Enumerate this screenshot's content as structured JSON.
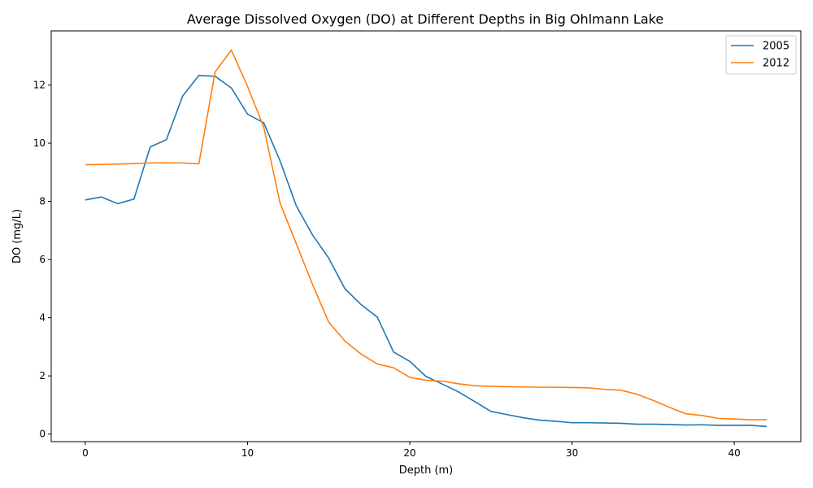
{
  "chart_data": {
    "type": "line",
    "title": "Average Dissolved Oxygen (DO) at Different Depths in Big Ohlmann Lake",
    "xlabel": "Depth (m)",
    "ylabel": "DO (mg/L)",
    "xlim": [
      -2.1,
      44.1
    ],
    "ylim": [
      -0.26,
      13.86
    ],
    "xticks": [
      0,
      10,
      20,
      30,
      40
    ],
    "yticks": [
      0,
      2,
      4,
      6,
      8,
      10,
      12
    ],
    "grid": false,
    "legend_position": "top-right",
    "x": [
      0,
      1,
      2,
      3,
      4,
      5,
      6,
      7,
      8,
      9,
      10,
      11,
      12,
      13,
      14,
      15,
      16,
      17,
      18,
      19,
      20,
      21,
      22,
      23,
      24,
      25,
      26,
      27,
      28,
      29,
      30,
      31,
      32,
      33,
      34,
      35,
      36,
      37,
      38,
      39,
      40,
      41,
      42
    ],
    "series": [
      {
        "name": "2005",
        "color": "#1f77b4",
        "values": [
          8.05,
          8.15,
          7.92,
          8.08,
          9.87,
          10.12,
          11.62,
          12.33,
          12.3,
          11.9,
          11.0,
          10.7,
          9.4,
          7.85,
          6.85,
          6.05,
          5.0,
          4.45,
          4.02,
          2.82,
          2.5,
          1.98,
          1.72,
          1.45,
          1.12,
          0.78,
          0.67,
          0.56,
          0.48,
          0.44,
          0.39,
          0.39,
          0.38,
          0.37,
          0.34,
          0.34,
          0.33,
          0.31,
          0.32,
          0.3,
          0.3,
          0.3,
          0.26
        ]
      },
      {
        "name": "2012",
        "color": "#ff7f0e",
        "values": [
          9.26,
          9.27,
          9.28,
          9.3,
          9.32,
          9.33,
          9.32,
          9.29,
          12.45,
          13.2,
          11.95,
          10.55,
          7.95,
          6.55,
          5.15,
          3.85,
          3.2,
          2.75,
          2.41,
          2.28,
          1.95,
          1.85,
          1.82,
          1.73,
          1.66,
          1.64,
          1.63,
          1.62,
          1.61,
          1.61,
          1.6,
          1.59,
          1.54,
          1.51,
          1.37,
          1.16,
          0.92,
          0.7,
          0.64,
          0.54,
          0.52,
          0.49,
          0.5
        ]
      }
    ]
  }
}
